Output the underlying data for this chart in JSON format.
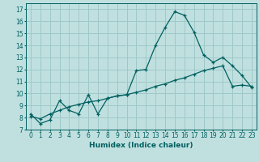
{
  "xlabel": "Humidex (Indice chaleur)",
  "bg_color": "#c0e0e0",
  "grid_color": "#a0c8c8",
  "line_color": "#006060",
  "x_ticks": [
    0,
    1,
    2,
    3,
    4,
    5,
    6,
    7,
    8,
    9,
    10,
    11,
    12,
    13,
    14,
    15,
    16,
    17,
    18,
    19,
    20,
    21,
    22,
    23
  ],
  "y_ticks": [
    7,
    8,
    9,
    10,
    11,
    12,
    13,
    14,
    15,
    16,
    17
  ],
  "xlim": [
    -0.5,
    23.5
  ],
  "ylim": [
    7,
    17.5
  ],
  "line1_x": [
    0,
    1,
    2,
    3,
    4,
    5,
    6,
    7,
    8,
    9,
    10,
    11,
    12,
    13,
    14,
    15,
    16,
    17,
    18,
    19,
    20,
    21,
    22,
    23
  ],
  "line1_y": [
    8.3,
    7.5,
    7.8,
    9.4,
    8.6,
    8.3,
    9.9,
    8.3,
    9.6,
    9.8,
    9.9,
    11.9,
    12.0,
    14.0,
    15.5,
    16.8,
    16.5,
    15.1,
    13.2,
    12.6,
    13.0,
    12.3,
    11.5,
    10.5
  ],
  "line2_x": [
    0,
    1,
    2,
    3,
    4,
    5,
    6,
    7,
    8,
    9,
    10,
    11,
    12,
    13,
    14,
    15,
    16,
    17,
    18,
    19,
    20,
    21,
    22,
    23
  ],
  "line2_y": [
    8.1,
    7.9,
    8.3,
    8.6,
    8.9,
    9.1,
    9.3,
    9.4,
    9.6,
    9.8,
    9.9,
    10.1,
    10.3,
    10.6,
    10.8,
    11.1,
    11.3,
    11.6,
    11.9,
    12.1,
    12.3,
    10.6,
    10.7,
    10.6
  ]
}
